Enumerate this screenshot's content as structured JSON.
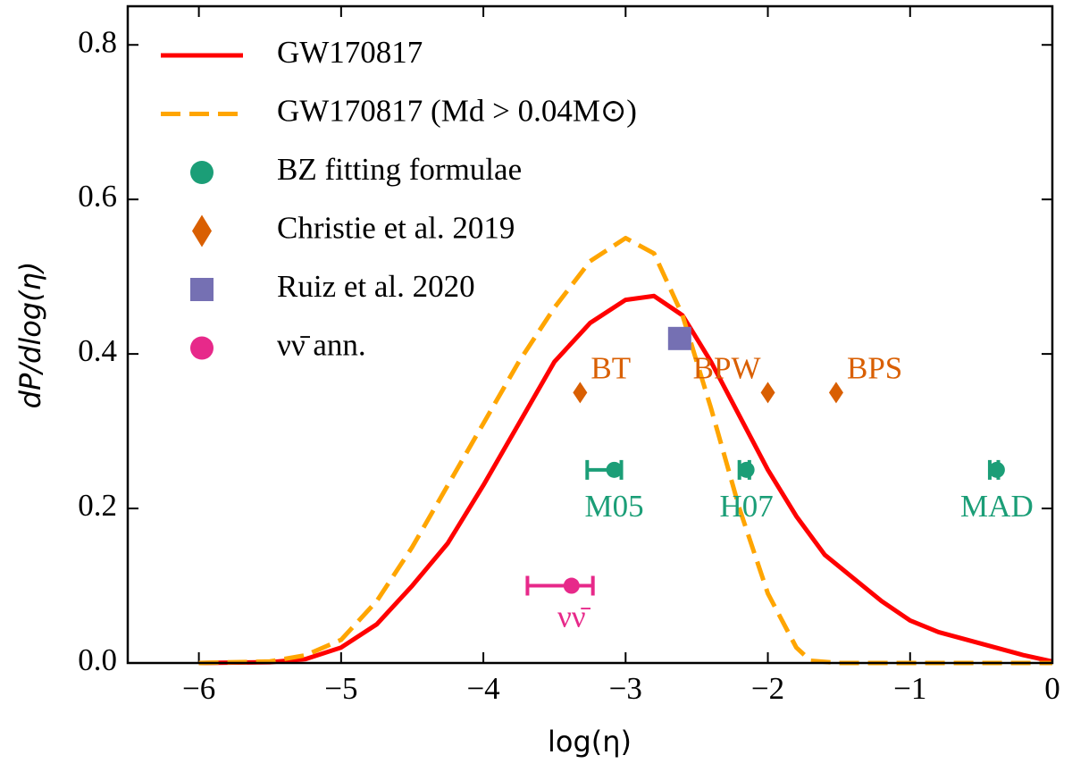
{
  "chart_data": {
    "type": "line",
    "xlabel": "log(η)",
    "ylabel": "dP/dlog(η)",
    "xlim": [
      -6.5,
      0
    ],
    "ylim": [
      0,
      0.85
    ],
    "xticks": [
      {
        "value": -6,
        "label": "−6"
      },
      {
        "value": -5,
        "label": "−5"
      },
      {
        "value": -4,
        "label": "−4"
      },
      {
        "value": -3,
        "label": "−3"
      },
      {
        "value": -2,
        "label": "−2"
      },
      {
        "value": -1,
        "label": "−1"
      },
      0
    ],
    "yticks": [
      {
        "value": 0,
        "label": "0.0"
      },
      0.2,
      0.4,
      0.6,
      0.8
    ],
    "legend": "upper left",
    "series": [
      {
        "name": "GW170817",
        "color": "#ff0000",
        "style": "solid",
        "x": [
          -6,
          -5.5,
          -5.25,
          -5,
          -4.75,
          -4.5,
          -4.25,
          -4,
          -3.75,
          -3.5,
          -3.25,
          -3,
          -2.8,
          -2.6,
          -2.4,
          -2.2,
          -2,
          -1.8,
          -1.6,
          -1.4,
          -1.2,
          -1,
          -0.8,
          -0.6,
          -0.4,
          -0.2,
          0
        ],
        "values": [
          0,
          0.001,
          0.005,
          0.02,
          0.05,
          0.1,
          0.155,
          0.23,
          0.31,
          0.39,
          0.44,
          0.47,
          0.475,
          0.45,
          0.39,
          0.32,
          0.25,
          0.19,
          0.14,
          0.11,
          0.08,
          0.055,
          0.04,
          0.03,
          0.02,
          0.01,
          0.002
        ]
      },
      {
        "name": "GW170817 (Md > 0.04M⊙)",
        "color": "#ffa500",
        "style": "dashed",
        "x": [
          -6,
          -5.5,
          -5.25,
          -5,
          -4.75,
          -4.5,
          -4.25,
          -4,
          -3.75,
          -3.5,
          -3.25,
          -3,
          -2.8,
          -2.6,
          -2.4,
          -2.2,
          -2,
          -1.8,
          -1.7,
          -1.5,
          0
        ],
        "values": [
          0,
          0.002,
          0.01,
          0.03,
          0.08,
          0.15,
          0.23,
          0.31,
          0.39,
          0.46,
          0.52,
          0.55,
          0.53,
          0.45,
          0.33,
          0.2,
          0.09,
          0.02,
          0.003,
          0,
          0
        ]
      },
      {
        "name": "BZ fitting formulae",
        "color": "#1b9e77",
        "marker": "circle",
        "x": [
          -3.08,
          -2.15,
          -0.39
        ],
        "values": [
          0.25,
          0.25,
          0.25
        ],
        "xerr_minus": [
          0.19,
          0.05,
          0.05
        ],
        "xerr_plus": [
          0.05,
          0.02,
          0.01
        ],
        "point_labels": [
          "M05",
          "H07",
          "MAD"
        ]
      },
      {
        "name": "Christie et al. 2019",
        "color": "#d95f02",
        "marker": "diamond",
        "x": [
          -3.32,
          -2.0,
          -1.52
        ],
        "values": [
          0.35,
          0.35,
          0.35
        ],
        "point_labels": [
          "BT",
          "BPW",
          "BPS"
        ]
      },
      {
        "name": "Ruiz et al. 2020",
        "color": "#7570b3",
        "marker": "square",
        "x": [
          -2.62
        ],
        "values": [
          0.42
        ]
      },
      {
        "name": "νν̄ ann.",
        "color": "#e7298a",
        "marker": "circle",
        "x": [
          -3.38
        ],
        "values": [
          0.1
        ],
        "xerr_minus": [
          0.31
        ],
        "xerr_plus": [
          0.15
        ],
        "point_labels": [
          "νν̄"
        ]
      }
    ]
  }
}
